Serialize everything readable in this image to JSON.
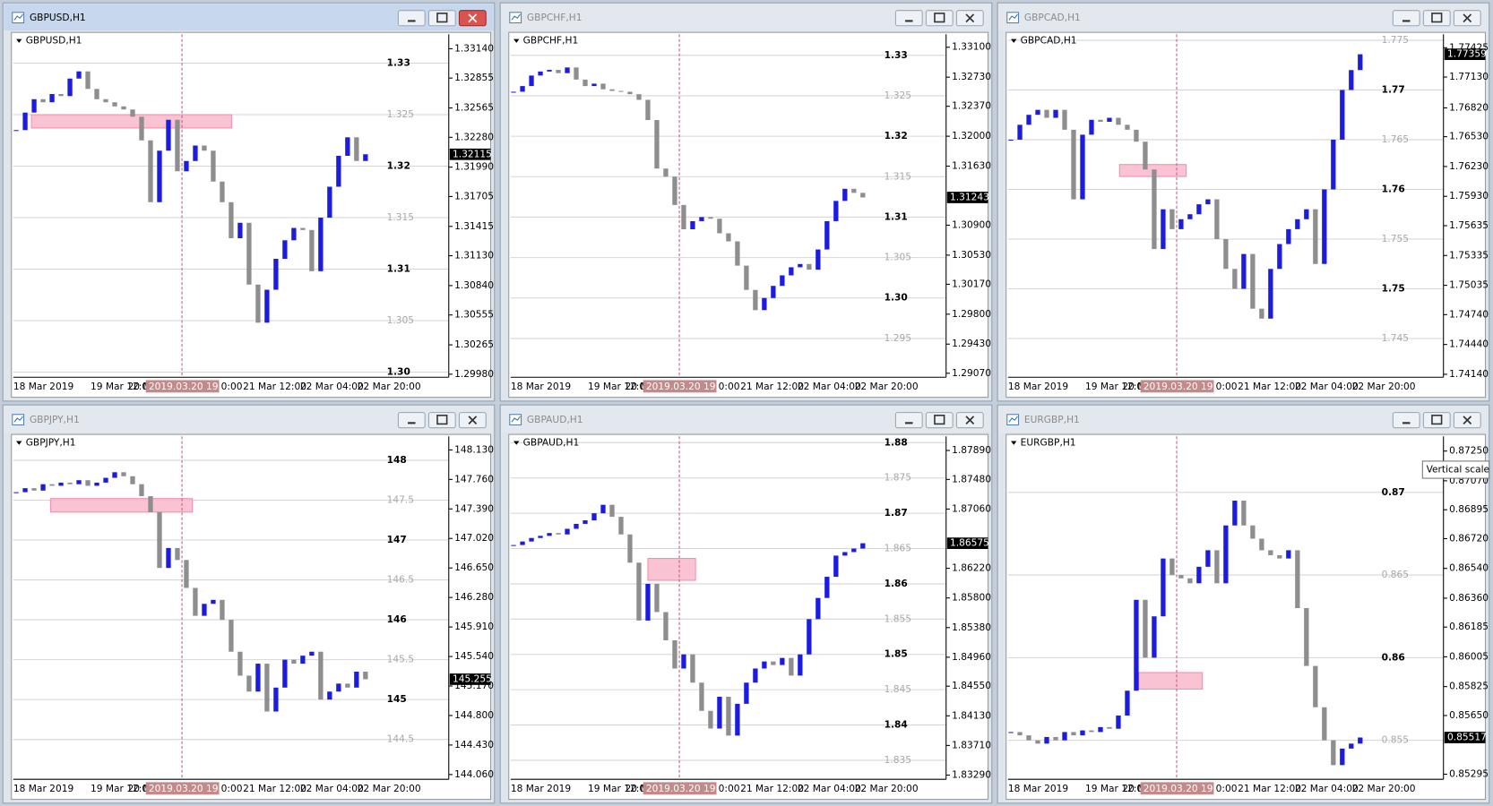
{
  "windows": [
    {
      "title": "GBPUSD,H1",
      "active": true,
      "chart_data": {
        "type": "candlestick",
        "values": [
          1.3235,
          1.3252,
          1.3265,
          1.3262,
          1.327,
          1.3268,
          1.3285,
          1.3292,
          1.3275,
          1.3265,
          1.3262,
          1.3258,
          1.3255,
          1.3248,
          1.3225,
          1.3165,
          1.3215,
          1.3245,
          1.3195,
          1.3205,
          1.322,
          1.3215,
          1.3185,
          1.3165,
          1.313,
          1.3145,
          1.3085,
          1.3048,
          1.308,
          1.311,
          1.3128,
          1.314,
          1.3138,
          1.3098,
          1.315,
          1.318,
          1.321,
          1.3228,
          1.3205,
          1.32115
        ],
        "ylim": [
          1.2995,
          1.3328
        ],
        "yticks": [
          {
            "value": 1.3314,
            "label": "1.33140"
          },
          1.32855,
          1.32565,
          {
            "value": 1.3228,
            "label": "1.32280"
          },
          {
            "value": 1.3199,
            "label": "1.31990"
          },
          1.31705,
          1.31415,
          {
            "value": 1.3113,
            "label": "1.31130"
          },
          {
            "value": 1.3084,
            "label": "1.30840"
          },
          1.30555,
          1.30265,
          {
            "value": 1.2998,
            "label": "1.29980"
          }
        ],
        "levels_major": [
          1.33,
          1.32,
          1.31,
          {
            "value": 1.3,
            "label": "1.30"
          }
        ],
        "levels_minor": [
          1.325,
          1.315,
          1.305
        ],
        "zone": [
          1.3237,
          1.325
        ]
      }
    },
    {
      "title": "GBPCHF,H1",
      "active": false,
      "chart_data": {
        "type": "candlestick",
        "values": [
          1.3255,
          1.3262,
          1.3275,
          1.328,
          1.3282,
          1.3278,
          1.3285,
          1.327,
          1.3262,
          1.3265,
          1.3258,
          1.3256,
          1.3255,
          1.3252,
          1.3245,
          1.322,
          1.316,
          1.315,
          1.3115,
          1.3085,
          1.3095,
          1.31,
          1.3098,
          1.308,
          1.307,
          1.304,
          1.301,
          1.2985,
          1.3,
          1.3015,
          1.3028,
          1.3038,
          1.3042,
          1.3035,
          1.306,
          1.3095,
          1.312,
          1.3135,
          1.313,
          1.31243
        ],
        "ylim": [
          1.2902,
          1.3326
        ],
        "yticks": [
          {
            "value": 1.331,
            "label": "1.33100"
          },
          {
            "value": 1.3273,
            "label": "1.32730"
          },
          {
            "value": 1.3237,
            "label": "1.32370"
          },
          {
            "value": 1.32,
            "label": "1.32000"
          },
          {
            "value": 1.3163,
            "label": "1.31630"
          },
          {
            "value": 1.309,
            "label": "1.30900"
          },
          {
            "value": 1.3053,
            "label": "1.30530"
          },
          {
            "value": 1.3017,
            "label": "1.30170"
          },
          {
            "value": 1.298,
            "label": "1.29800"
          },
          {
            "value": 1.2943,
            "label": "1.29430"
          },
          {
            "value": 1.2907,
            "label": "1.29070"
          }
        ],
        "levels_major": [
          1.33,
          1.32,
          1.31,
          {
            "value": 1.3,
            "label": "1.30"
          }
        ],
        "levels_minor": [
          1.325,
          1.315,
          1.305,
          1.295
        ]
      }
    },
    {
      "title": "GBPCAD,H1",
      "active": false,
      "chart_data": {
        "type": "candlestick",
        "values": [
          1.765,
          1.7665,
          1.7675,
          1.768,
          1.7672,
          1.768,
          1.766,
          1.759,
          1.7655,
          1.767,
          1.7668,
          1.7672,
          1.7665,
          1.766,
          1.7648,
          1.762,
          1.754,
          1.758,
          1.756,
          1.757,
          1.7575,
          1.7585,
          1.759,
          1.755,
          1.752,
          1.75,
          1.7535,
          1.748,
          1.747,
          1.752,
          1.7545,
          1.756,
          1.757,
          1.758,
          1.7525,
          1.76,
          1.765,
          1.77,
          1.772,
          1.77359
        ],
        "ylim": [
          1.7411,
          1.7756
        ],
        "yticks": [
          1.77425,
          {
            "value": 1.7713,
            "label": "1.77130"
          },
          {
            "value": 1.7682,
            "label": "1.76820"
          },
          {
            "value": 1.7653,
            "label": "1.76530"
          },
          {
            "value": 1.7623,
            "label": "1.76230"
          },
          {
            "value": 1.7593,
            "label": "1.75930"
          },
          1.75635,
          1.75335,
          1.75035,
          {
            "value": 1.7474,
            "label": "1.74740"
          },
          {
            "value": 1.7444,
            "label": "1.74440"
          },
          {
            "value": 1.7414,
            "label": "1.74140"
          }
        ],
        "levels_major": [
          1.77,
          1.76,
          1.75
        ],
        "levels_minor": [
          1.775,
          1.765,
          1.755,
          1.745
        ],
        "zone": [
          1.7613,
          1.7625
        ]
      }
    },
    {
      "title": "GBPJPY,H1",
      "active": false,
      "chart_data": {
        "type": "candlestick",
        "values": [
          147.6,
          147.65,
          147.62,
          147.7,
          147.68,
          147.72,
          147.7,
          147.75,
          147.68,
          147.72,
          147.78,
          147.85,
          147.8,
          147.7,
          147.55,
          147.35,
          146.65,
          146.9,
          146.75,
          146.4,
          146.05,
          146.2,
          146.25,
          146,
          145.6,
          145.3,
          145.1,
          145.45,
          144.85,
          145.15,
          145.5,
          145.45,
          145.55,
          145.6,
          145,
          145.1,
          145.2,
          145.15,
          145.35,
          145.255
        ],
        "ylim": [
          144.0,
          148.3
        ],
        "yticks": [
          {
            "value": 148.13,
            "label": "148.130"
          },
          {
            "value": 147.76,
            "label": "147.760"
          },
          {
            "value": 147.39,
            "label": "147.390"
          },
          {
            "value": 147.02,
            "label": "147.020"
          },
          {
            "value": 146.65,
            "label": "146.650"
          },
          {
            "value": 146.28,
            "label": "146.280"
          },
          {
            "value": 145.91,
            "label": "145.910"
          },
          {
            "value": 145.54,
            "label": "145.540"
          },
          {
            "value": 145.17,
            "label": "145.170"
          },
          {
            "value": 144.8,
            "label": "144.800"
          },
          {
            "value": 144.43,
            "label": "144.430"
          },
          {
            "value": 144.06,
            "label": "144.060"
          }
        ],
        "levels_major": [
          148,
          147,
          146,
          145
        ],
        "levels_minor": [
          147.5,
          146.5,
          145.5,
          144.5
        ],
        "zone": [
          147.35,
          147.52
        ]
      }
    },
    {
      "title": "GBPAUD,H1",
      "active": false,
      "chart_data": {
        "type": "candlestick",
        "values": [
          1.8655,
          1.866,
          1.8665,
          1.8668,
          1.8672,
          1.867,
          1.8678,
          1.8685,
          1.869,
          1.87,
          1.8712,
          1.8695,
          1.867,
          1.863,
          1.8548,
          1.86,
          1.856,
          1.852,
          1.848,
          1.85,
          1.846,
          1.842,
          1.8395,
          1.844,
          1.8385,
          1.843,
          1.846,
          1.848,
          1.849,
          1.8485,
          1.8495,
          1.847,
          1.85,
          1.855,
          1.858,
          1.861,
          1.864,
          1.8645,
          1.865,
          1.86575
        ],
        "ylim": [
          1.8323,
          1.8809
        ],
        "yticks": [
          {
            "value": 1.8789,
            "label": "1.87890"
          },
          {
            "value": 1.8748,
            "label": "1.87480"
          },
          {
            "value": 1.8706,
            "label": "1.87060"
          },
          {
            "value": 1.8622,
            "label": "1.86220"
          },
          {
            "value": 1.858,
            "label": "1.85800"
          },
          {
            "value": 1.8538,
            "label": "1.85380"
          },
          {
            "value": 1.8496,
            "label": "1.84960"
          },
          {
            "value": 1.8455,
            "label": "1.84550"
          },
          {
            "value": 1.8413,
            "label": "1.84130"
          },
          {
            "value": 1.8371,
            "label": "1.83710"
          },
          {
            "value": 1.8329,
            "label": "1.83290"
          }
        ],
        "levels_major": [
          1.88,
          1.87,
          1.86,
          1.85,
          1.84
        ],
        "levels_minor": [
          1.875,
          1.865,
          1.855,
          1.845,
          1.835
        ],
        "zone": [
          1.8605,
          1.8636
        ]
      }
    },
    {
      "title": "EURGBP,H1",
      "active": false,
      "tooltip": "Vertical scale",
      "chart_data": {
        "type": "candlestick",
        "values": [
          0.8555,
          0.8553,
          0.855,
          0.8548,
          0.8552,
          0.855,
          0.8555,
          0.8553,
          0.8556,
          0.8555,
          0.8558,
          0.8557,
          0.8565,
          0.858,
          0.8635,
          0.86,
          0.8625,
          0.866,
          0.865,
          0.8648,
          0.8645,
          0.8655,
          0.8665,
          0.8645,
          0.868,
          0.8695,
          0.868,
          0.8672,
          0.8665,
          0.8662,
          0.866,
          0.8665,
          0.863,
          0.8595,
          0.857,
          0.855,
          0.8535,
          0.8545,
          0.8548,
          0.85517
        ],
        "ylim": [
          0.85264,
          0.87339
        ],
        "yticks": [
          {
            "value": 0.8725,
            "label": "0.87250"
          },
          {
            "value": 0.8707,
            "label": "0.87070"
          },
          0.86895,
          {
            "value": 0.8672,
            "label": "0.86720"
          },
          {
            "value": 0.8654,
            "label": "0.86540"
          },
          {
            "value": 0.8636,
            "label": "0.86360"
          },
          0.86185,
          0.86005,
          0.85825,
          {
            "value": 0.8565,
            "label": "0.85650"
          },
          0.85295
        ],
        "levels_major": [
          0.87,
          0.86
        ],
        "levels_minor": [
          0.865,
          0.855
        ],
        "zone": [
          0.8581,
          0.8591
        ]
      }
    }
  ],
  "x_labels": [
    "18 Mar 2019",
    "19 Mar 12:00",
    "20 M",
    "2019.03.20 19:00",
    "0:00",
    "21 Mar 12:00",
    "22 Mar 04:00",
    "22 Mar 20:00"
  ]
}
